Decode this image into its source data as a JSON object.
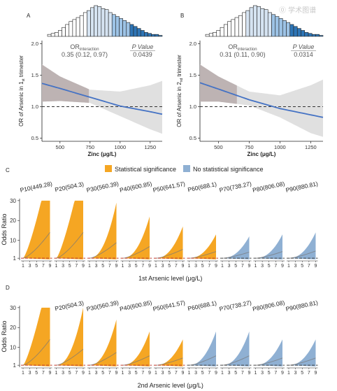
{
  "watermark": "⓪ 学术图谱",
  "legend": {
    "sig_label": "Statistical significance",
    "nonsig_label": "No statistical significance",
    "sig_color": "#F5A623",
    "nonsig_color": "#8FB0D3"
  },
  "colors": {
    "line": "#4472C4",
    "ci_band": "#E0E0E0",
    "ci_band_shaded": "#BDB3B3",
    "ref_line": "#333333",
    "ref_red": "#C0392B",
    "hist_dark": "#2E75B6"
  },
  "chart_data": [
    {
      "id": "A",
      "type": "line",
      "panel_letter": "A",
      "xlabel": "Zinc (μg/L)",
      "ylabel_main": "OR of Arsenic in 1",
      "ylabel_sub": "st",
      "ylabel_tail": " trimester",
      "xlim": [
        350,
        1350
      ],
      "ylim": [
        0.45,
        2.05
      ],
      "xticks": [
        500,
        750,
        1000,
        1250
      ],
      "yticks": [
        0.5,
        1.0,
        1.5,
        2.0
      ],
      "ref_line": 1.0,
      "significant_until": 740,
      "or_title": "OR",
      "or_sub": "interaction",
      "or_value": "0.35 (0.12, 0.97)",
      "p_title": "P Value",
      "p_value": "0.0439",
      "line_x": [
        350,
        500,
        750,
        1000,
        1250,
        1350
      ],
      "line_y": [
        1.37,
        1.29,
        1.15,
        1.01,
        0.92,
        0.88
      ],
      "ci_lower": [
        1.08,
        1.09,
        1.06,
        0.85,
        0.64,
        0.57
      ],
      "ci_upper": [
        1.67,
        1.48,
        1.27,
        1.24,
        1.34,
        1.41
      ],
      "histogram": [
        2,
        3,
        4,
        6,
        9,
        12,
        15,
        17,
        19,
        21,
        24,
        26,
        29,
        31,
        30,
        28,
        27,
        24,
        22,
        20,
        18,
        16,
        14,
        12,
        10,
        8,
        6,
        4,
        3,
        2,
        2,
        1
      ]
    },
    {
      "id": "B",
      "type": "line",
      "panel_letter": "B",
      "xlabel": "Zinc (μg/L)",
      "ylabel_main": "OR of Arsenic in 2",
      "ylabel_sub": "nd",
      "ylabel_tail": " trimester",
      "xlim": [
        350,
        1350
      ],
      "ylim": [
        0.45,
        2.05
      ],
      "xticks": [
        500,
        750,
        1000,
        1250
      ],
      "yticks": [
        0.5,
        1.0,
        1.5,
        2.0
      ],
      "ref_line": 1.0,
      "significant_until": 650,
      "or_title": "OR",
      "or_sub": "interaction",
      "or_value": "0.31 (0.11, 0.90)",
      "p_title": "P Value",
      "p_value": "0.0314",
      "line_x": [
        350,
        500,
        750,
        1000,
        1250,
        1350
      ],
      "line_y": [
        1.38,
        1.28,
        1.11,
        0.97,
        0.87,
        0.83
      ],
      "ci_lower": [
        1.08,
        1.08,
        1.02,
        0.83,
        0.58,
        0.52
      ],
      "ci_upper": [
        1.67,
        1.48,
        1.24,
        1.18,
        1.34,
        1.43
      ],
      "histogram": [
        2,
        3,
        4,
        6,
        9,
        12,
        15,
        17,
        19,
        21,
        24,
        26,
        29,
        31,
        30,
        28,
        27,
        24,
        22,
        20,
        18,
        16,
        14,
        12,
        10,
        8,
        6,
        4,
        3,
        2,
        2,
        1
      ]
    },
    {
      "id": "C",
      "type": "area",
      "panel_letter": "C",
      "xlabel": "1st Arsenic level (μg/L)",
      "ylabel": "Odds Ratio",
      "xticks": [
        1,
        3,
        5,
        7,
        9
      ],
      "yticks": [
        1,
        10,
        20,
        30
      ],
      "ylim": [
        0,
        31
      ],
      "ref_line": 1,
      "panels": [
        {
          "label": "P10(449.28)",
          "sig": true,
          "upper_max": 30,
          "capped": true,
          "sig_until": 9
        },
        {
          "label": "P20(504.3)",
          "sig": true,
          "upper_max": 30,
          "capped": true,
          "sig_until": 9
        },
        {
          "label": "P30(560.39)",
          "sig": true,
          "upper_max": 29,
          "capped": false,
          "sig_until": 9
        },
        {
          "label": "P40(600.85)",
          "sig": true,
          "upper_max": 22,
          "capped": false,
          "sig_until": 9
        },
        {
          "label": "P50(641.57)",
          "sig": true,
          "upper_max": 17,
          "capped": false,
          "sig_until": 9
        },
        {
          "label": "P60(688.1)",
          "sig": true,
          "upper_max": 13,
          "capped": false,
          "sig_until": 9
        },
        {
          "label": "P70(738.27)",
          "sig": false,
          "upper_max": 12,
          "capped": false,
          "sig_until": 0
        },
        {
          "label": "P80(806.08)",
          "sig": false,
          "upper_max": 13,
          "capped": false,
          "sig_until": 0
        },
        {
          "label": "P90(880.81)",
          "sig": false,
          "upper_max": 14,
          "capped": false,
          "sig_until": 0
        }
      ]
    },
    {
      "id": "D",
      "type": "area",
      "panel_letter": "D",
      "xlabel": "2nd Arsenic level (μg/L)",
      "ylabel": "Odds Ratio",
      "xticks": [
        1,
        3,
        5,
        7,
        9
      ],
      "yticks": [
        1,
        10,
        20,
        30
      ],
      "ylim": [
        0,
        31
      ],
      "ref_line": 1,
      "panels": [
        {
          "label": "",
          "sig": true,
          "upper_max": 30,
          "capped": true,
          "sig_until": 9
        },
        {
          "label": "P20(504.3)",
          "sig": true,
          "upper_max": 30,
          "capped": false,
          "sig_until": 9
        },
        {
          "label": "P30(560.39)",
          "sig": true,
          "upper_max": 24,
          "capped": false,
          "sig_until": 9
        },
        {
          "label": "P40(600.85)",
          "sig": true,
          "upper_max": 18,
          "capped": false,
          "sig_until": 9
        },
        {
          "label": "P50(641.57)",
          "sig": true,
          "upper_max": 14,
          "capped": false,
          "sig_until": 9
        },
        {
          "label": "P60(688.1)",
          "sig": false,
          "upper_max": 18,
          "capped": false,
          "sig_until": 0
        },
        {
          "label": "P70(738.27)",
          "sig": false,
          "upper_max": 18,
          "capped": false,
          "sig_until": 0
        },
        {
          "label": "P80(806.08)",
          "sig": false,
          "upper_max": 14,
          "capped": false,
          "sig_until": 0
        },
        {
          "label": "P90(880.81)",
          "sig": false,
          "upper_max": 14,
          "capped": false,
          "sig_until": 0
        }
      ]
    }
  ]
}
